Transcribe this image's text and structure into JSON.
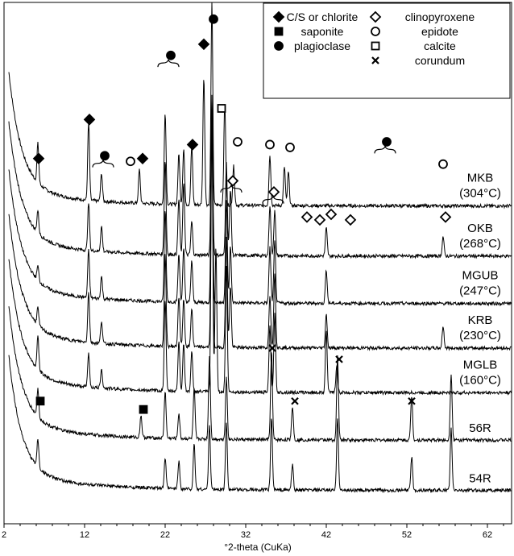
{
  "chart_data": {
    "type": "line",
    "xlabel": "°2-theta (CuKa)",
    "ylabel": "",
    "xlim": [
      2,
      65
    ],
    "xticks": [
      2,
      12,
      22,
      32,
      42,
      52,
      62
    ],
    "xtick_labels": [
      "2",
      "12",
      "22",
      "32",
      "42",
      "52",
      "62"
    ],
    "grid": false,
    "legend_position": "top-right",
    "legend": [
      {
        "marker": "diamond-filled",
        "label": "C/S or chlorite"
      },
      {
        "marker": "diamond-open",
        "label": "clinopyroxene"
      },
      {
        "marker": "square-filled",
        "label": "saponite"
      },
      {
        "marker": "circle-open",
        "label": "epidote"
      },
      {
        "marker": "circle-filled",
        "label": "plagioclase"
      },
      {
        "marker": "square-open",
        "label": "calcite"
      },
      {
        "marker": "cross",
        "label": "corundum"
      }
    ],
    "series": [
      {
        "label": [
          "MKB",
          "(304°C)"
        ],
        "baseline": 0.82,
        "peaks": [
          [
            6.2,
            0.14
          ],
          [
            12.5,
            0.28
          ],
          [
            14.1,
            0.1
          ],
          [
            18.8,
            0.12
          ],
          [
            22,
            0.33
          ],
          [
            23.7,
            0.18
          ],
          [
            24.3,
            0.2
          ],
          [
            25.3,
            0.21
          ],
          [
            26.8,
            0.46
          ],
          [
            27.8,
            0.72
          ],
          [
            29.4,
            0.37
          ],
          [
            30.5,
            0.14
          ],
          [
            35,
            0.18
          ],
          [
            36.8,
            0.14
          ],
          [
            37.3,
            0.12
          ]
        ]
      },
      {
        "label": [
          "OKB",
          "(268°C)"
        ],
        "baseline": 0.64,
        "peaks": [
          [
            6.2,
            0.08
          ],
          [
            12.5,
            0.17
          ],
          [
            14.1,
            0.09
          ],
          [
            22,
            0.34
          ],
          [
            23.7,
            0.2
          ],
          [
            24.3,
            0.26
          ],
          [
            25.3,
            0.12
          ],
          [
            27.8,
            0.58
          ],
          [
            29.6,
            0.33
          ],
          [
            30.1,
            0.24
          ],
          [
            35,
            0.18
          ],
          [
            35.6,
            0.16
          ],
          [
            42,
            0.1
          ],
          [
            56.5,
            0.07
          ]
        ]
      },
      {
        "label": [
          "MGUB",
          "(247°C)"
        ],
        "baseline": 0.47,
        "peaks": [
          [
            6.2,
            0.05
          ],
          [
            12.5,
            0.17
          ],
          [
            14.1,
            0.08
          ],
          [
            22,
            0.33
          ],
          [
            23.7,
            0.17
          ],
          [
            24.3,
            0.19
          ],
          [
            25.3,
            0.15
          ],
          [
            27.8,
            0.72
          ],
          [
            29.6,
            0.37
          ],
          [
            30.1,
            0.2
          ],
          [
            35,
            0.2
          ],
          [
            35.6,
            0.22
          ],
          [
            42,
            0.12
          ]
        ]
      },
      {
        "label": [
          "KRB",
          "(230°C)"
        ],
        "baseline": 0.31,
        "peaks": [
          [
            6.2,
            0.06
          ],
          [
            12.5,
            0.18
          ],
          [
            14.1,
            0.08
          ],
          [
            22,
            0.33
          ],
          [
            23.7,
            0.18
          ],
          [
            24.3,
            0.17
          ],
          [
            25.3,
            0.14
          ],
          [
            27.8,
            0.82
          ],
          [
            29.6,
            0.4
          ],
          [
            30.1,
            0.22
          ],
          [
            35,
            0.19
          ],
          [
            35.6,
            0.27
          ],
          [
            42,
            0.12
          ],
          [
            56.5,
            0.08
          ]
        ]
      },
      {
        "label": [
          "MGLB",
          "(160°C)"
        ],
        "baseline": 0.15,
        "peaks": [
          [
            6.2,
            0.12
          ],
          [
            12.5,
            0.12
          ],
          [
            14.1,
            0.07
          ],
          [
            22,
            0.33
          ],
          [
            23.7,
            0.18
          ],
          [
            24.3,
            0.17
          ],
          [
            25.3,
            0.14
          ],
          [
            27.8,
            0.94
          ],
          [
            28.3,
            0.52
          ],
          [
            29.6,
            0.45
          ],
          [
            35,
            0.24
          ],
          [
            35.6,
            0.28
          ],
          [
            42,
            0.22
          ],
          [
            43.3,
            0.1
          ]
        ]
      },
      {
        "label": [
          "56R",
          ""
        ],
        "baseline": -0.02,
        "peaks": [
          [
            6.2,
            0.1
          ],
          [
            19,
            0.08
          ],
          [
            22,
            0.17
          ],
          [
            23.7,
            0.09
          ],
          [
            25.6,
            0.18
          ],
          [
            27.5,
            0.3
          ],
          [
            29.6,
            0.22
          ],
          [
            35.2,
            0.32
          ],
          [
            37.8,
            0.12
          ],
          [
            43.4,
            0.3
          ],
          [
            52.6,
            0.16
          ],
          [
            57.5,
            0.24
          ]
        ]
      },
      {
        "label": [
          "54R",
          ""
        ],
        "baseline": -0.2,
        "peaks": [
          [
            6.2,
            0.1
          ],
          [
            22,
            0.11
          ],
          [
            23.7,
            0.1
          ],
          [
            25.6,
            0.16
          ],
          [
            27.5,
            0.23
          ],
          [
            29.6,
            0.24
          ],
          [
            35.2,
            0.26
          ],
          [
            37.8,
            0.09
          ],
          [
            43.4,
            0.26
          ],
          [
            52.6,
            0.12
          ],
          [
            57.5,
            0.22
          ]
        ]
      }
    ],
    "annotations": [
      {
        "marker": "diamond-filled",
        "x": 6.3,
        "y": 0.99
      },
      {
        "marker": "diamond-filled",
        "x": 12.6,
        "y": 1.13
      },
      {
        "marker": "circle-filled",
        "x": 14.5,
        "y": 1.0
      },
      {
        "marker": "circle-open",
        "x": 17.7,
        "y": 0.98
      },
      {
        "marker": "diamond-filled",
        "x": 19.2,
        "y": 0.99
      },
      {
        "marker": "circle-filled",
        "x": 22.7,
        "y": 1.36
      },
      {
        "marker": "diamond-filled",
        "x": 25.4,
        "y": 1.04
      },
      {
        "marker": "diamond-filled",
        "x": 26.8,
        "y": 1.4
      },
      {
        "marker": "circle-filled",
        "x": 28.0,
        "y": 1.49
      },
      {
        "marker": "square-open",
        "x": 29.0,
        "y": 1.17
      },
      {
        "marker": "circle-open",
        "x": 31.0,
        "y": 1.05
      },
      {
        "marker": "circle-open",
        "x": 35.0,
        "y": 1.04
      },
      {
        "marker": "circle-open",
        "x": 37.5,
        "y": 1.03
      },
      {
        "marker": "circle-filled",
        "x": 49.5,
        "y": 1.05
      },
      {
        "marker": "circle-open",
        "x": 56.5,
        "y": 0.97
      },
      {
        "marker": "diamond-open",
        "x": 30.4,
        "y": 0.91
      },
      {
        "marker": "diamond-open",
        "x": 35.5,
        "y": 0.87
      },
      {
        "marker": "diamond-open",
        "x": 39.6,
        "y": 0.78
      },
      {
        "marker": "diamond-open",
        "x": 41.2,
        "y": 0.77
      },
      {
        "marker": "diamond-open",
        "x": 42.6,
        "y": 0.79
      },
      {
        "marker": "diamond-open",
        "x": 45.0,
        "y": 0.77
      },
      {
        "marker": "diamond-open",
        "x": 56.8,
        "y": 0.78
      },
      {
        "marker": "square-filled",
        "x": 6.5,
        "y": 0.12
      },
      {
        "marker": "square-filled",
        "x": 19.3,
        "y": 0.09
      },
      {
        "marker": "cross",
        "x": 35.3,
        "y": 0.31
      },
      {
        "marker": "cross",
        "x": 38.1,
        "y": 0.12
      },
      {
        "marker": "cross",
        "x": 43.6,
        "y": 0.27
      },
      {
        "marker": "cross",
        "x": 52.6,
        "y": 0.12
      }
    ],
    "braces": [
      {
        "x": 14.3,
        "y": 0.97
      },
      {
        "x": 22.4,
        "y": 1.33
      },
      {
        "x": 30.2,
        "y": 0.88
      },
      {
        "x": 35.4,
        "y": 0.84
      },
      {
        "x": 49.3,
        "y": 1.02
      }
    ]
  }
}
